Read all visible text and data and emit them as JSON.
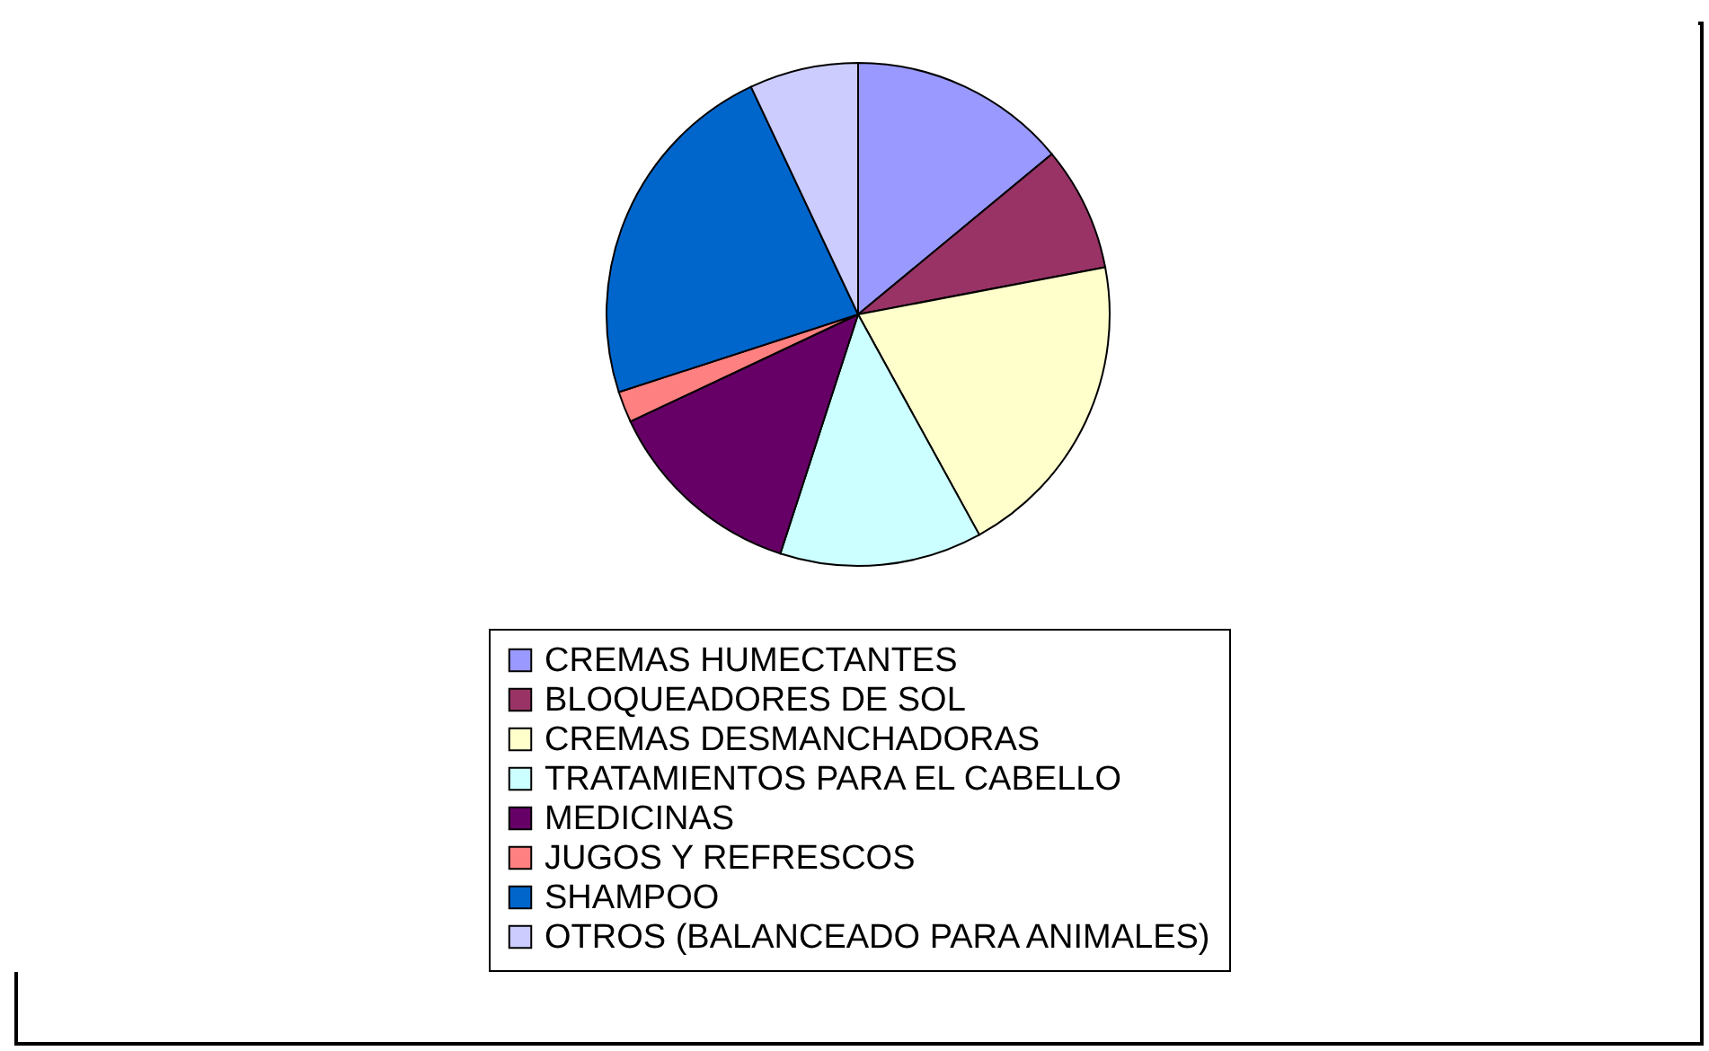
{
  "chart_data": {
    "type": "pie",
    "categories": [
      "CREMAS HUMECTANTES",
      "BLOQUEADORES DE SOL",
      "CREMAS DESMANCHADORAS",
      "TRATAMIENTOS PARA EL CABELLO",
      "MEDICINAS",
      "JUGOS Y REFRESCOS",
      "SHAMPOO",
      "OTROS (BALANCEADO PARA ANIMALES)"
    ],
    "values": [
      14,
      8,
      20,
      13,
      13,
      2,
      23,
      7
    ],
    "colors": [
      "#9999ff",
      "#993366",
      "#ffffcc",
      "#ccffff",
      "#660066",
      "#ff8080",
      "#0066cc",
      "#ccccff"
    ],
    "legend": "bottom"
  }
}
